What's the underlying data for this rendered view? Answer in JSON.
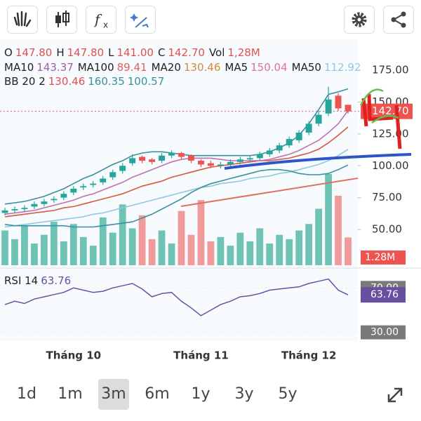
{
  "header": {
    "ranges": [
      "1d",
      "1m",
      "3m",
      "6m",
      "1y",
      "3y",
      "5y"
    ],
    "selected": 2
  },
  "chart_data": {
    "type": "candlestick",
    "ohlc": [
      {
        "k": "O",
        "v": "147.80"
      },
      {
        "k": "H",
        "v": "147.80"
      },
      {
        "k": "L",
        "v": "141.00"
      },
      {
        "k": "C",
        "v": "142.70"
      },
      {
        "k": "Vol",
        "v": "1,28M"
      }
    ],
    "indicators": [
      [
        {
          "name": "MA10",
          "value": "143.37",
          "color": "#9c5fa8"
        },
        {
          "name": "MA100",
          "value": "89.41",
          "color": "#e06060"
        },
        {
          "name": "MA20",
          "value": "130.46",
          "color": "#d08a3a"
        },
        {
          "name": "MA5",
          "value": "150.04",
          "color": "#e0709a"
        },
        {
          "name": "MA50",
          "value": "112.92",
          "color": "#8fc8e0"
        }
      ],
      [
        {
          "name": "BB 20 2",
          "value": "130.46",
          "color": "#e05050"
        },
        {
          "name": "",
          "value": "160.35",
          "color": "#3a8fa0"
        },
        {
          "name": "",
          "value": "100.57",
          "color": "#3a8fa0"
        }
      ]
    ],
    "categories": [
      null,
      null,
      null,
      null,
      null,
      null,
      null,
      "Tháng 10",
      null,
      null,
      null,
      null,
      null,
      null,
      null,
      null,
      null,
      null,
      null,
      null,
      "Tháng 11",
      null,
      null,
      null,
      null,
      null,
      null,
      null,
      null,
      null,
      null,
      "Tháng 12",
      null,
      null,
      null,
      null
    ],
    "open": [
      63,
      65,
      66,
      68,
      70,
      73,
      75,
      79,
      83,
      85,
      87,
      91,
      96,
      102,
      107,
      105,
      104,
      108,
      110,
      108,
      104,
      102,
      100,
      101,
      103,
      105,
      106,
      109,
      112,
      116,
      120,
      126,
      133,
      141,
      155,
      147.8
    ],
    "high": [
      67,
      68,
      69,
      72,
      74,
      76,
      80,
      84,
      86,
      88,
      92,
      97,
      102,
      109,
      108,
      106,
      110,
      112,
      111,
      109,
      105,
      104,
      103,
      105,
      107,
      108,
      111,
      114,
      118,
      123,
      128,
      135,
      143,
      162,
      157,
      147.8
    ],
    "low": [
      61,
      63,
      64,
      66,
      68,
      71,
      73,
      77,
      81,
      83,
      85,
      89,
      94,
      100,
      102,
      101,
      102,
      106,
      105,
      102,
      99,
      98,
      98,
      99,
      101,
      103,
      104,
      107,
      110,
      114,
      118,
      124,
      131,
      139,
      143,
      141
    ],
    "close": [
      65,
      66,
      67,
      70,
      72,
      74,
      78,
      82,
      84,
      86,
      90,
      95,
      100,
      106,
      104,
      103,
      108,
      110,
      107,
      104,
      101,
      100,
      101,
      103,
      105,
      106,
      109,
      112,
      116,
      121,
      126,
      133,
      140,
      152,
      145,
      142.7
    ],
    "volume": [
      1.6,
      1.2,
      1.8,
      1.0,
      1.4,
      2.0,
      1.1,
      1.9,
      1.3,
      0.9,
      2.2,
      1.5,
      2.8,
      1.7,
      2.3,
      1.2,
      1.6,
      1.0,
      2.5,
      1.4,
      3.0,
      1.1,
      1.3,
      0.9,
      1.5,
      1.1,
      1.7,
      1.0,
      1.4,
      1.2,
      1.6,
      1.9,
      2.6,
      4.2,
      3.2,
      1.28
    ],
    "lines": [
      {
        "color": "#8fc8e0",
        "values": [
          52,
          53,
          54,
          55,
          56,
          57,
          58,
          59,
          60,
          62,
          63,
          65,
          67,
          69,
          71,
          73,
          75,
          77,
          79,
          81,
          83,
          84,
          86,
          87,
          88,
          90,
          91,
          92,
          94,
          95,
          97,
          99,
          101,
          104,
          108,
          112.92
        ]
      },
      {
        "color": "#d9573f",
        "values": [
          60,
          61,
          62,
          63,
          64,
          65,
          67,
          68,
          70,
          72,
          74,
          76,
          78,
          81,
          84,
          86,
          88,
          91,
          93,
          95,
          97,
          99,
          100,
          101,
          102,
          103,
          104,
          104,
          105,
          106,
          108,
          110,
          113,
          118,
          124,
          130.46
        ]
      },
      {
        "color": "#c070b0",
        "values": [
          62,
          63,
          64,
          65,
          67,
          69,
          71,
          73,
          76,
          78,
          81,
          84,
          87,
          91,
          94,
          97,
          100,
          103,
          105,
          106,
          106,
          106,
          105,
          104,
          104,
          104,
          104,
          105,
          107,
          109,
          112,
          116,
          120,
          126,
          133,
          143.37
        ]
      },
      {
        "color": "#3a8fa0",
        "values": [
          70,
          71,
          72,
          74,
          76,
          79,
          82,
          86,
          90,
          93,
          97,
          101,
          104,
          108,
          110,
          111,
          111,
          110,
          109,
          108,
          108,
          108,
          108,
          108,
          108,
          108,
          109,
          111,
          114,
          118,
          124,
          133,
          144,
          156,
          158,
          160.35
        ]
      },
      {
        "color": "#3a8fa0",
        "values": [
          54,
          53,
          53,
          53,
          53,
          53,
          53,
          52,
          52,
          52,
          53,
          54,
          55,
          56,
          59,
          62,
          66,
          70,
          74,
          79,
          83,
          86,
          88,
          90,
          92,
          94,
          96,
          97,
          97,
          96,
          94,
          93,
          93,
          94,
          97,
          100.57
        ]
      }
    ],
    "up_color": "#26a69a",
    "down_color": "#ef5350",
    "ylim": [
      22,
      197
    ],
    "yticks": [
      {
        "value": 175,
        "label": "175.00"
      },
      {
        "value": 150,
        "label": "150.00"
      },
      {
        "value": 125,
        "label": "125.00"
      },
      {
        "value": 100,
        "label": "100.00"
      },
      {
        "value": 75,
        "label": "75.00"
      },
      {
        "value": 50,
        "label": "50.00"
      }
    ],
    "last_price": {
      "value": 142.7,
      "label": "142.70"
    },
    "last_volume": {
      "value": 1.28,
      "label": "1.28M"
    },
    "rsi": {
      "name": "RSI 14",
      "value_label": "63.76",
      "value": 63.76,
      "color": "#6a4fa0",
      "values": [
        55,
        58,
        56,
        60,
        62,
        64,
        66,
        70,
        68,
        66,
        67,
        70,
        72,
        74,
        69,
        62,
        65,
        66,
        58,
        52,
        45,
        50,
        55,
        58,
        62,
        63,
        65,
        68,
        69,
        70,
        71,
        74,
        76,
        78,
        68,
        63.76
      ],
      "ylim": [
        26,
        86
      ],
      "yticks": [
        {
          "value": 70,
          "label": "70.00"
        },
        {
          "value": 30,
          "label": "30.00"
        }
      ]
    }
  }
}
